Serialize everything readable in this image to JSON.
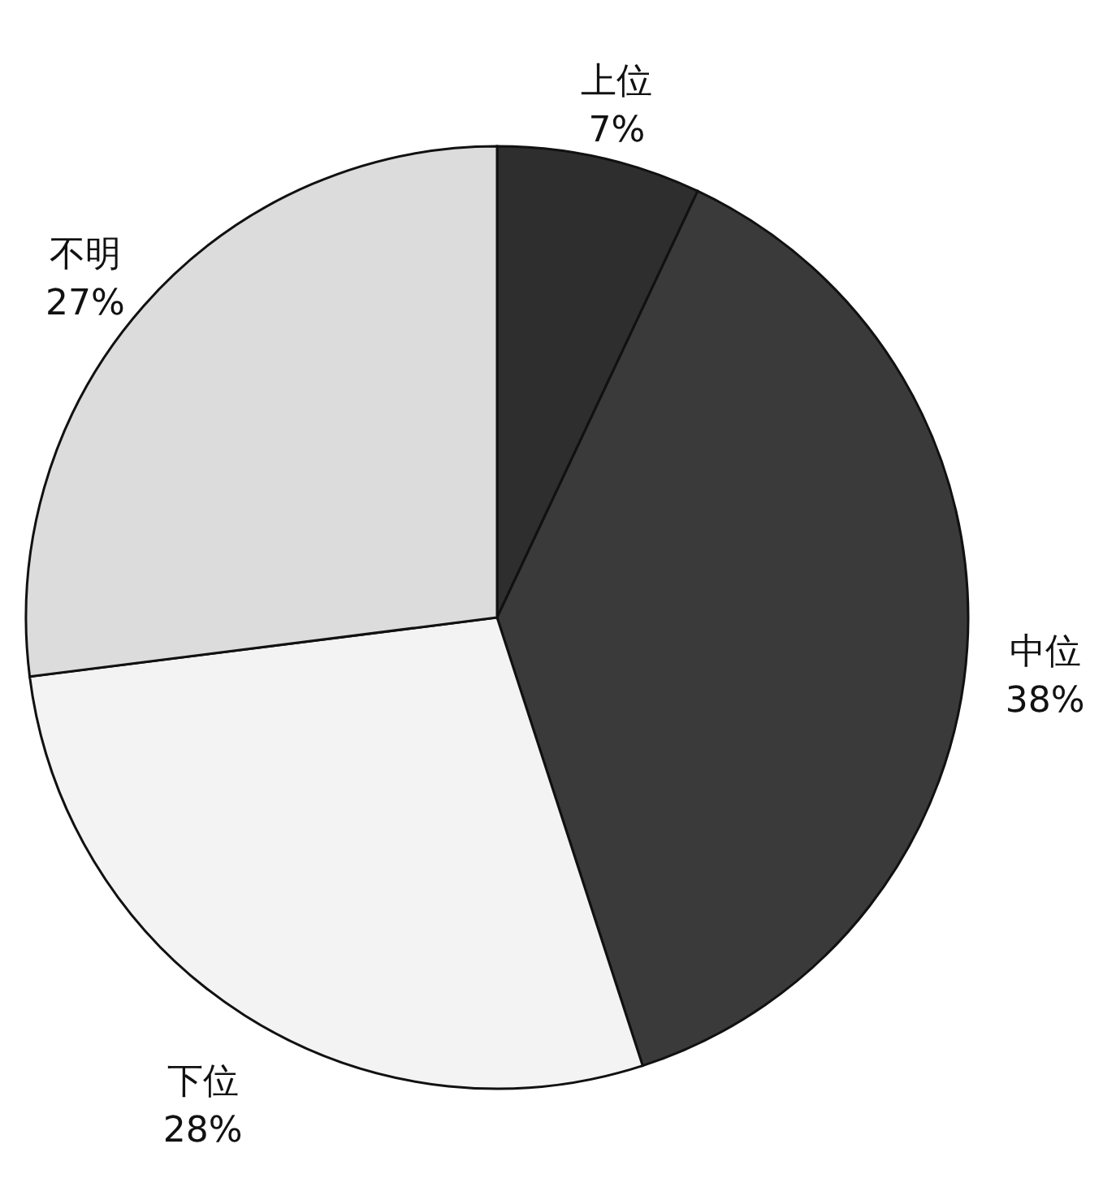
{
  "chart_data": {
    "type": "pie",
    "categories": [
      "上位",
      "中位",
      "下位",
      "不明"
    ],
    "values": [
      7,
      38,
      28,
      27
    ],
    "value_labels": [
      "7%",
      "38%",
      "28%",
      "27%"
    ],
    "colors": [
      "#2e2e2e",
      "#3a3a3a",
      "#f3f3f3",
      "#dcdcdc"
    ]
  }
}
